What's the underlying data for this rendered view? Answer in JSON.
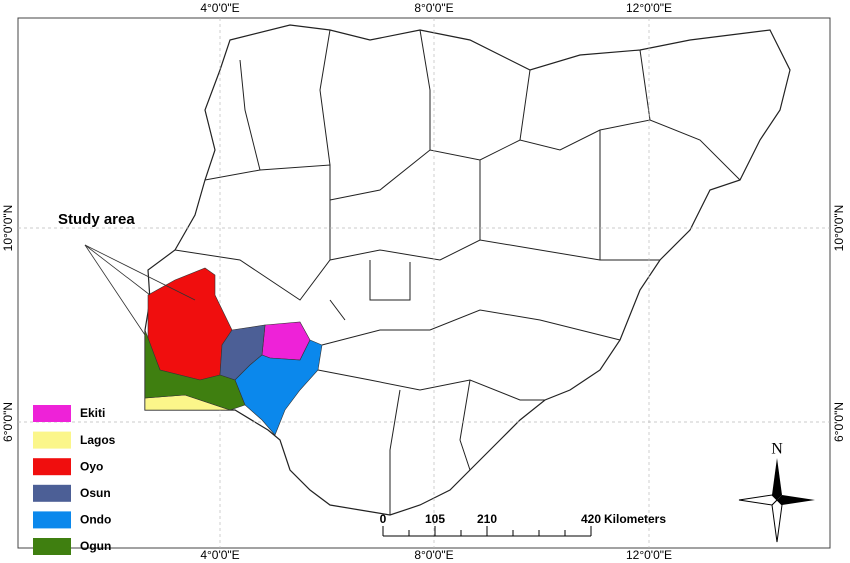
{
  "map": {
    "coordinate_labels": {
      "lon": [
        "4°0'0\"E",
        "8°0'0\"E",
        "12°0'0\"E"
      ],
      "lat": [
        "10°0'0\"N",
        "6°0'0\"N"
      ]
    },
    "callout": "Study area",
    "legend": [
      {
        "label": "Ekiti",
        "color": "#ee22d8"
      },
      {
        "label": "Lagos",
        "color": "#fbf68a"
      },
      {
        "label": "Oyo",
        "color": "#f00e0e"
      },
      {
        "label": "Osun",
        "color": "#4c5f96"
      },
      {
        "label": "Ondo",
        "color": "#0b88ec"
      },
      {
        "label": "Ogun",
        "color": "#3f7f10"
      }
    ],
    "scale_bar": {
      "ticks": [
        0,
        105,
        210,
        420
      ],
      "unit": "Kilometers"
    },
    "north_arrow": "N"
  }
}
